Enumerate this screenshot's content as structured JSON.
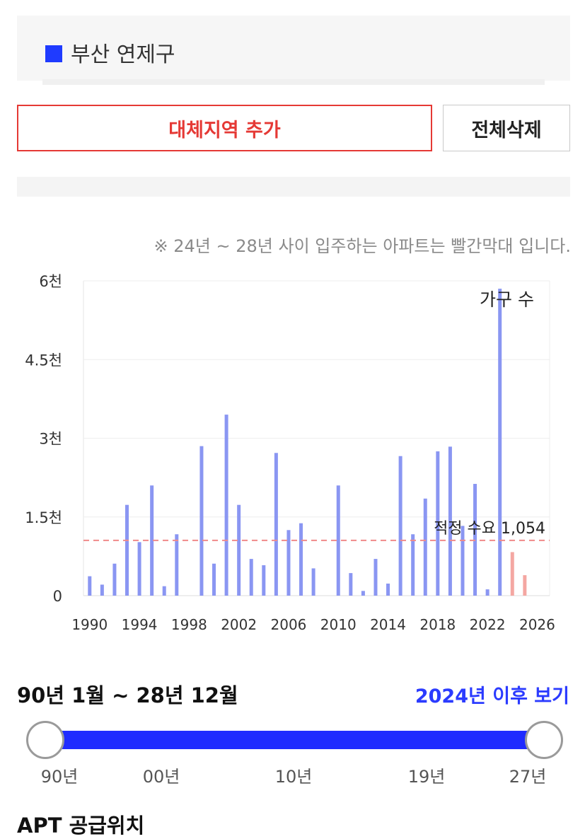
{
  "region": {
    "name": "부산 연제구",
    "marker_color": "#1f3bff"
  },
  "buttons": {
    "add_region": "대체지역 추가",
    "clear_all": "전체삭제"
  },
  "note": "※ 24년 ~ 28년 사이 입주하는 아파트는 빨간막대 입니다.",
  "chart_data": {
    "type": "bar",
    "y_ticks": [
      "0",
      "1.5천",
      "3천",
      "4.5천",
      "6천"
    ],
    "x_ticks": [
      "1990",
      "1994",
      "1998",
      "2002",
      "2006",
      "2010",
      "2014",
      "2018",
      "2022",
      "2026"
    ],
    "ylim": [
      0,
      6000
    ],
    "xlim": [
      1989.5,
      2027
    ],
    "grid": true,
    "legend": "가구 수",
    "legend_position": "top-right",
    "series": [
      {
        "name": "가구 수",
        "color": "#8a96f2",
        "points": [
          [
            1990,
            370
          ],
          [
            1991,
            210
          ],
          [
            1992,
            610
          ],
          [
            1993,
            1730
          ],
          [
            1994,
            1020
          ],
          [
            1995,
            2100
          ],
          [
            1996,
            180
          ],
          [
            1997,
            1170
          ],
          [
            1999,
            2850
          ],
          [
            2000,
            610
          ],
          [
            2001,
            3450
          ],
          [
            2002,
            1730
          ],
          [
            2003,
            700
          ],
          [
            2004,
            580
          ],
          [
            2005,
            2720
          ],
          [
            2006,
            1250
          ],
          [
            2007,
            1380
          ],
          [
            2008,
            520
          ],
          [
            2010,
            2100
          ],
          [
            2011,
            430
          ],
          [
            2012,
            90
          ],
          [
            2013,
            700
          ],
          [
            2014,
            230
          ],
          [
            2015,
            2660
          ],
          [
            2016,
            1170
          ],
          [
            2017,
            1850
          ],
          [
            2018,
            2750
          ],
          [
            2019,
            2840
          ],
          [
            2020,
            1330
          ],
          [
            2021,
            2130
          ],
          [
            2022,
            120
          ],
          [
            2023,
            5850
          ]
        ]
      },
      {
        "name": "",
        "color": "#f4a7a2",
        "points": [
          [
            2024,
            830
          ],
          [
            2025,
            390
          ]
        ]
      }
    ],
    "reference_line": {
      "value": 1054,
      "label": "적정 수요 1,054",
      "color": "#f08a8a"
    }
  },
  "range": {
    "title": "90년 1월 ~ 28년 12월",
    "after_link": "2024년 이후 보기",
    "tick_labels": [
      "90년",
      "00년",
      "10년",
      "19년",
      "27년"
    ],
    "track_color": "#1f2bff"
  },
  "section": {
    "apt_title": "APT 공급위치"
  }
}
